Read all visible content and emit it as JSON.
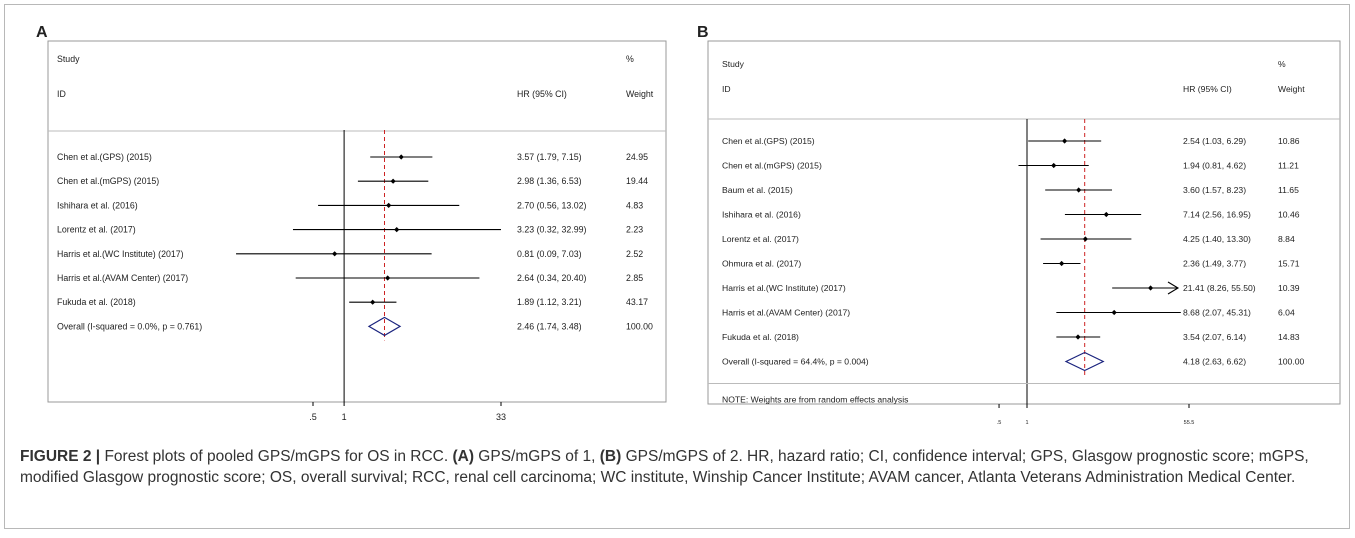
{
  "chart_data": [
    {
      "type": "forest",
      "panel": "A",
      "header": {
        "study": "Study",
        "id": "ID",
        "hr": "HR (95% CI)",
        "pct": "%",
        "weight": "Weight"
      },
      "rows": [
        {
          "label": "Chen et al.(GPS) (2015)",
          "hr": 3.57,
          "lo": 1.79,
          "hi": 7.15,
          "ci_text": "3.57 (1.79, 7.15)",
          "weight": "24.95"
        },
        {
          "label": "Chen et al.(mGPS) (2015)",
          "hr": 2.98,
          "lo": 1.36,
          "hi": 6.53,
          "ci_text": "2.98 (1.36, 6.53)",
          "weight": "19.44"
        },
        {
          "label": "Ishihara et al. (2016)",
          "hr": 2.7,
          "lo": 0.56,
          "hi": 13.02,
          "ci_text": "2.70 (0.56, 13.02)",
          "weight": "4.83"
        },
        {
          "label": "Lorentz et al. (2017)",
          "hr": 3.23,
          "lo": 0.32,
          "hi": 32.99,
          "ci_text": "3.23 (0.32, 32.99)",
          "weight": "2.23"
        },
        {
          "label": "Harris et al.(WC Institute) (2017)",
          "hr": 0.81,
          "lo": 0.09,
          "hi": 7.03,
          "ci_text": "0.81 (0.09, 7.03)",
          "weight": "2.52"
        },
        {
          "label": "Harris et al.(AVAM Center) (2017)",
          "hr": 2.64,
          "lo": 0.34,
          "hi": 20.4,
          "ci_text": "2.64 (0.34, 20.40)",
          "weight": "2.85"
        },
        {
          "label": "Fukuda et al. (2018)",
          "hr": 1.89,
          "lo": 1.12,
          "hi": 3.21,
          "ci_text": "1.89 (1.12, 3.21)",
          "weight": "43.17"
        }
      ],
      "overall": {
        "label": "Overall  (I-squared = 0.0%, p = 0.761)",
        "hr": 2.46,
        "lo": 1.74,
        "hi": 3.48,
        "ci_text": "2.46 (1.74, 3.48)",
        "weight": "100.00"
      },
      "note": "",
      "scale": "log",
      "xlim": [
        0.0303,
        33
      ],
      "null_line": 1,
      "ticks": [
        {
          "value": 0.5,
          "label": ".5"
        },
        {
          "value": 1,
          "label": "1"
        },
        {
          "value": 33,
          "label": "33"
        }
      ]
    },
    {
      "type": "forest",
      "panel": "B",
      "header": {
        "study": "Study",
        "id": "ID",
        "hr": "HR (95% CI)",
        "pct": "%",
        "weight": "Weight"
      },
      "rows": [
        {
          "label": "Chen et al.(GPS) (2015)",
          "hr": 2.54,
          "lo": 1.03,
          "hi": 6.29,
          "ci_text": "2.54 (1.03, 6.29)",
          "weight": "10.86"
        },
        {
          "label": "Chen et al.(mGPS) (2015)",
          "hr": 1.94,
          "lo": 0.81,
          "hi": 4.62,
          "ci_text": "1.94 (0.81, 4.62)",
          "weight": "11.21"
        },
        {
          "label": "Baum et al. (2015)",
          "hr": 3.6,
          "lo": 1.57,
          "hi": 8.23,
          "ci_text": "3.60 (1.57, 8.23)",
          "weight": "11.65"
        },
        {
          "label": "Ishihara et al. (2016)",
          "hr": 7.14,
          "lo": 2.56,
          "hi": 16.95,
          "ci_text": "7.14 (2.56, 16.95)",
          "weight": "10.46"
        },
        {
          "label": "Lorentz et al. (2017)",
          "hr": 4.25,
          "lo": 1.4,
          "hi": 13.3,
          "ci_text": "4.25 (1.40, 13.30)",
          "weight": "8.84"
        },
        {
          "label": "Ohmura et al. (2017)",
          "hr": 2.36,
          "lo": 1.49,
          "hi": 3.77,
          "ci_text": "2.36 (1.49, 3.77)",
          "weight": "15.71"
        },
        {
          "label": "Harris et al.(WC Institute) (2017)",
          "hr": 21.41,
          "lo": 8.26,
          "hi": 55.5,
          "ci_text": "21.41 (8.26, 55.50)",
          "weight": "10.39",
          "arrow": true
        },
        {
          "label": "Harris et al.(AVAM Center) (2017)",
          "hr": 8.68,
          "lo": 2.07,
          "hi": 45.31,
          "ci_text": "8.68 (2.07, 45.31)",
          "weight": "6.04"
        },
        {
          "label": "Fukuda et al. (2018)",
          "hr": 3.54,
          "lo": 2.07,
          "hi": 6.14,
          "ci_text": "3.54 (2.07, 6.14)",
          "weight": "14.83"
        }
      ],
      "overall": {
        "label": "Overall  (I-squared = 64.4%, p = 0.004)",
        "hr": 4.18,
        "lo": 2.63,
        "hi": 6.62,
        "ci_text": "4.18 (2.63, 6.62)",
        "weight": "100.00"
      },
      "note": "NOTE: Weights are from random effects analysis",
      "scale": "log",
      "xlim": [
        0.018,
        55.5
      ],
      "null_line": 1,
      "ticks": [
        {
          "value": 0.5,
          "label": ".5"
        },
        {
          "value": 1,
          "label": "1"
        },
        {
          "value": 55.5,
          "label": "55.5"
        }
      ]
    }
  ],
  "caption": {
    "fig_label": "FIGURE 2 |",
    "intro": " Forest plots of pooled GPS/mGPS for OS in RCC. ",
    "a_tag": "(A)",
    "a_text": " GPS/mGPS of 1, ",
    "b_tag": "(B)",
    "b_text": " GPS/mGPS of 2. HR, hazard ratio; CI, confidence interval; GPS, Glasgow prognostic score; mGPS, modified Glasgow prognostic score; OS, overall survival; RCC, renal cell carcinoma; WC institute, Winship Cancer Institute; AVAM cancer, Atlanta Veterans Administration Medical Center."
  },
  "colors": {
    "line": "#000000",
    "dashed": "#cc2222",
    "diamond": "#1a237e",
    "border": "#888888"
  }
}
